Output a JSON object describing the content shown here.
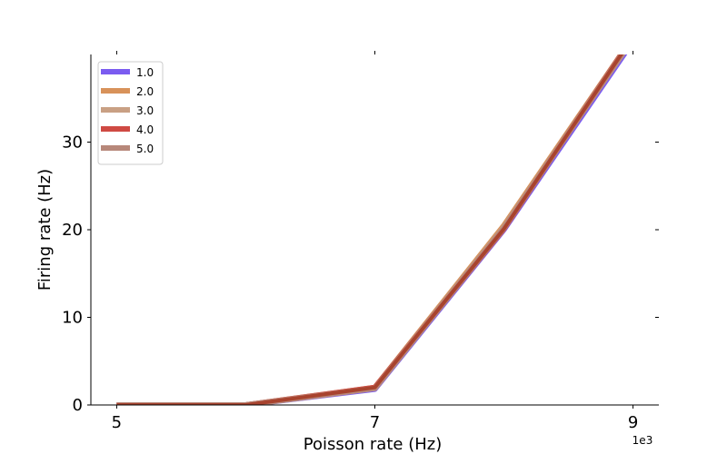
{
  "chart_data": {
    "type": "line",
    "title": "",
    "xlabel": "Poisson rate (Hz)",
    "ylabel": "Firing rate (Hz)",
    "x_offset_label": "1e3",
    "xlim": [
      4.8,
      9.2
    ],
    "ylim": [
      0,
      40
    ],
    "x_ticks": [
      5,
      7,
      9
    ],
    "x_tick_labels": [
      "5",
      "7",
      "9"
    ],
    "y_ticks": [
      0,
      10,
      20,
      30
    ],
    "y_tick_labels": [
      "0",
      "10",
      "20",
      "30"
    ],
    "x": [
      5,
      6,
      7,
      8,
      9
    ],
    "legend_position": "upper-left",
    "grid": false,
    "series": [
      {
        "name": "1.0",
        "color": "#7b5cf0",
        "values": [
          0,
          0,
          1.8,
          20.0,
          41.5
        ]
      },
      {
        "name": "2.0",
        "color": "#d8925a",
        "values": [
          0,
          0,
          2.0,
          20.5,
          42.0
        ]
      },
      {
        "name": "3.0",
        "color": "#c9a084",
        "values": [
          0,
          0,
          1.9,
          20.3,
          41.8
        ]
      },
      {
        "name": "4.0",
        "color": "#cf4a43",
        "values": [
          0,
          0,
          2.0,
          20.1,
          42.0
        ]
      },
      {
        "name": "5.0",
        "color": "#b7887a",
        "values": [
          0,
          0,
          1.9,
          20.2,
          41.9
        ]
      }
    ],
    "top_line_color": "#a8432e"
  }
}
